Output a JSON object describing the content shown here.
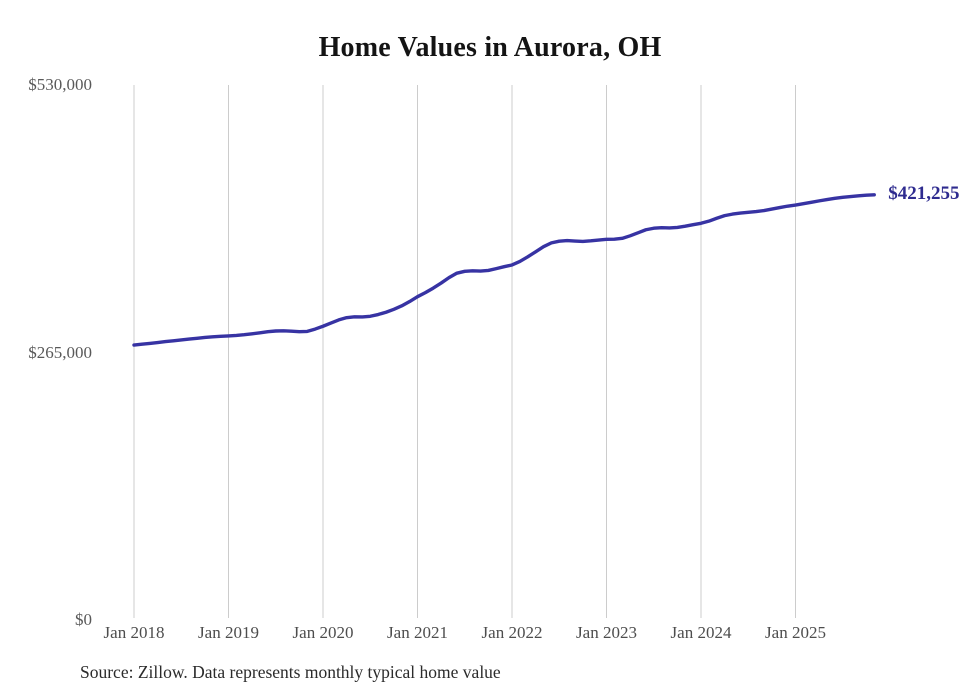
{
  "page": {
    "background": "#ffffff"
  },
  "header": {
    "title": "Home Values in Aurora, OH"
  },
  "footer": {
    "source": "Source: Zillow. Data represents monthly typical home value"
  },
  "chart_data": {
    "type": "line",
    "title": "Home Values in Aurora, OH",
    "series_name": "Monthly typical home value",
    "start_month": "2018-01",
    "end_month": "2025-11",
    "x_ticks": [
      "Jan 2018",
      "Jan 2019",
      "Jan 2020",
      "Jan 2021",
      "Jan 2022",
      "Jan 2023",
      "Jan 2024",
      "Jan 2025"
    ],
    "y_ticks": [
      {
        "label": "$530,000",
        "value": 530000
      },
      {
        "label": "$265,000",
        "value": 265000
      },
      {
        "label": "$0",
        "value": 0
      }
    ],
    "ylim": [
      0,
      530000
    ],
    "grid": "vertical-only",
    "legend": "none",
    "end_label": "$421,255",
    "end_value": 421255,
    "line_color": "#3733a3",
    "grid_color": "#cccccc",
    "values": [
      272400,
      273200,
      274000,
      274900,
      275800,
      276600,
      277400,
      278300,
      279100,
      279900,
      280500,
      281000,
      281400,
      281900,
      282600,
      283500,
      284500,
      285600,
      286300,
      286500,
      286100,
      285600,
      285900,
      288200,
      291000,
      294200,
      297300,
      299500,
      300300,
      300200,
      300900,
      302600,
      304900,
      307800,
      311200,
      315500,
      320300,
      324300,
      328800,
      333800,
      339200,
      343600,
      345400,
      345900,
      345700,
      346300,
      348100,
      350000,
      351700,
      355200,
      359800,
      364800,
      369800,
      373600,
      375300,
      375900,
      375400,
      375000,
      375600,
      376400,
      377100,
      377300,
      378100,
      380600,
      383600,
      386600,
      388100,
      388600,
      388400,
      388900,
      390100,
      391600,
      393000,
      395100,
      398000,
      400600,
      402100,
      403100,
      403900,
      404600,
      405600,
      407100,
      408600,
      410000,
      411100,
      412400,
      413800,
      415200,
      416500,
      417700,
      418700,
      419500,
      420200,
      420800,
      421255
    ]
  }
}
